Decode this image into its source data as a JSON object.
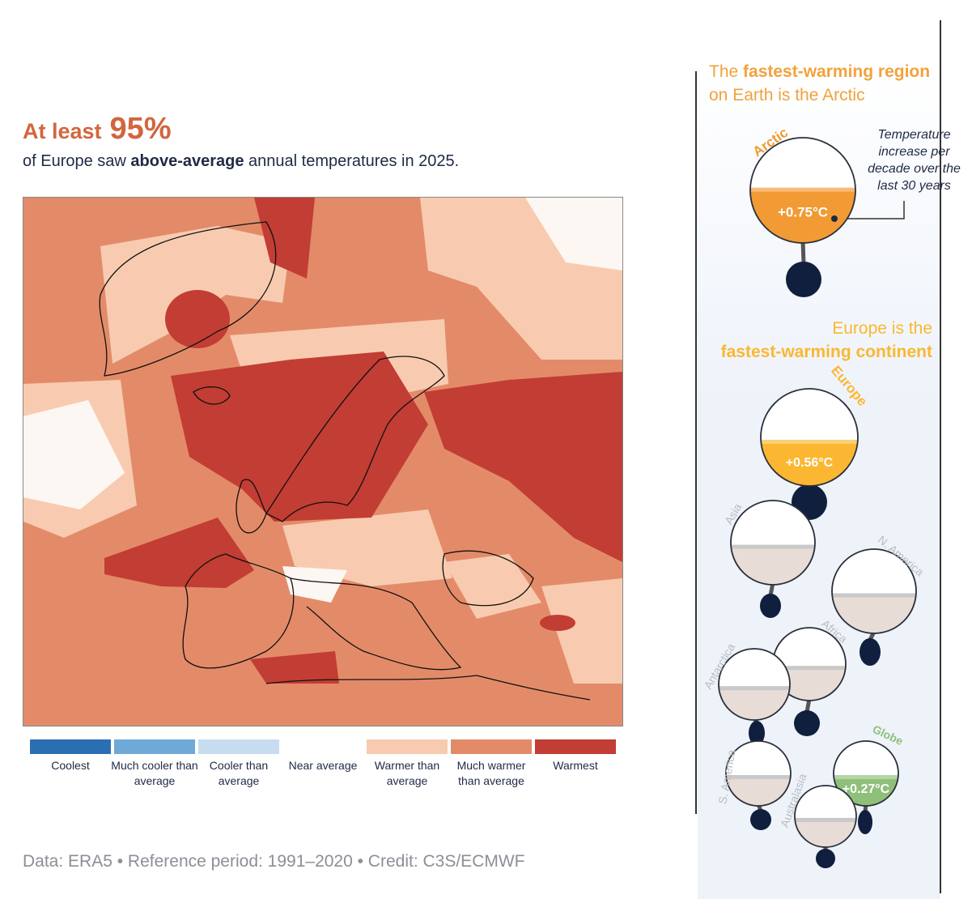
{
  "headline": {
    "prefix": "At least",
    "value": "95%"
  },
  "subline": {
    "before": "of Europe saw ",
    "bold": "above-average",
    "after": " annual temperatures in 2025."
  },
  "legend": [
    {
      "label": "Coolest",
      "color": "#2b6fb3"
    },
    {
      "label": "Much cooler than average",
      "color": "#6ea9d8"
    },
    {
      "label": "Cooler than average",
      "color": "#c7dcef"
    },
    {
      "label": "Near average",
      "color": "#ffffff"
    },
    {
      "label": "Warmer than average",
      "color": "#f8cbb0"
    },
    {
      "label": "Much warmer than average",
      "color": "#e38b69"
    },
    {
      "label": "Warmest",
      "color": "#c23d33"
    }
  ],
  "footer": "Data: ERA5 • Reference period: 1991–2020 • Credit: C3S/ECMWF",
  "panel": {
    "arctic_title": {
      "plain1": "The ",
      "bold": "fastest-warming region",
      "plain2": "on Earth is the Arctic"
    },
    "europe_title": {
      "line1": "Europe is the",
      "line2": "fastest-warming continent"
    },
    "note": "Temperature increase per decade over the last 30 years",
    "regions": [
      {
        "name": "Arctic",
        "value": "+0.75°C",
        "color": "#f29a33",
        "label_color": "#f29a33"
      },
      {
        "name": "Europe",
        "value": "+0.56°C",
        "color": "#fbb731",
        "label_color": "#fbb731"
      },
      {
        "name": "Asia",
        "value": "",
        "color": "#e8dcd7",
        "label_color": "#b9bcc2"
      },
      {
        "name": "N. America",
        "value": "",
        "color": "#e8dcd7",
        "label_color": "#b9bcc2"
      },
      {
        "name": "Africa",
        "value": "",
        "color": "#e8dcd7",
        "label_color": "#b9bcc2"
      },
      {
        "name": "Antarctica",
        "value": "",
        "color": "#e8dcd7",
        "label_color": "#b9bcc2"
      },
      {
        "name": "S. America",
        "value": "",
        "color": "#e8dcd7",
        "label_color": "#b9bcc2"
      },
      {
        "name": "Globe",
        "value": "+0.27°C",
        "color": "#8fc07a",
        "label_color": "#8fc07a"
      },
      {
        "name": "Australasia",
        "value": "",
        "color": "#e8dcd7",
        "label_color": "#b9bcc2"
      }
    ]
  }
}
